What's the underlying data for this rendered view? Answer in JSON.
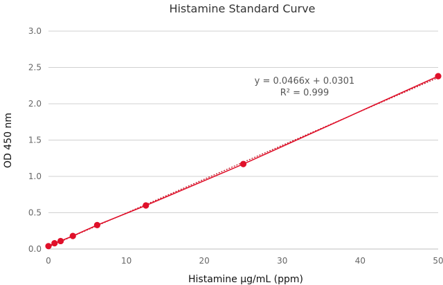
{
  "chart_data": {
    "type": "scatter",
    "title": "Histamine Standard Curve",
    "xlabel": "Histamine µg/mL (ppm)",
    "ylabel": "OD 450 nm",
    "xlim": [
      0,
      50
    ],
    "ylim": [
      0,
      3.0
    ],
    "xticks": [
      "0",
      "10",
      "20",
      "30",
      "40",
      "50"
    ],
    "yticks": [
      "0.0",
      "0.5",
      "1.0",
      "1.5",
      "2.0",
      "2.5",
      "3.0"
    ],
    "grid": "horizontal",
    "colors": {
      "series": "#e0102a",
      "trendline": "#c01020"
    },
    "series": [
      {
        "x": [
          0,
          0.78,
          1.56,
          3.13,
          6.25,
          12.5,
          25,
          50
        ],
        "y": [
          0.04,
          0.08,
          0.11,
          0.18,
          0.33,
          0.6,
          1.17,
          2.38
        ]
      }
    ],
    "trendline": {
      "slope": 0.0466,
      "intercept": 0.0301,
      "equation": "y = 0.0466x + 0.0301",
      "r2": "R² = 0.999"
    }
  }
}
